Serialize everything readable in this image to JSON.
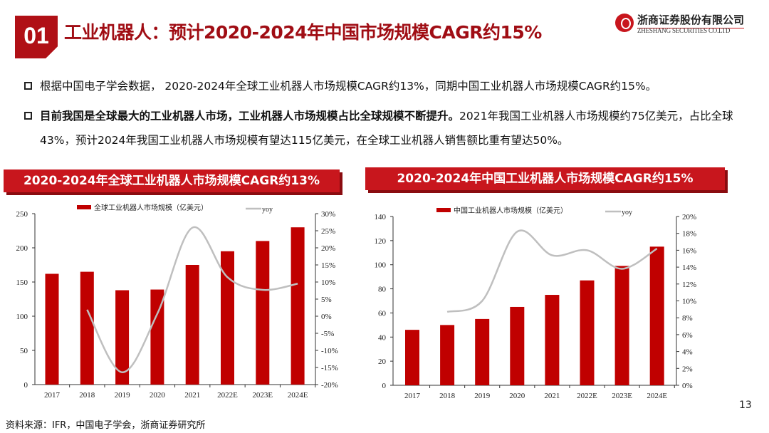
{
  "header": {
    "section_number": "01",
    "title": "工业机器人：预计2020-2024年中国市场规模CAGR约15%",
    "logo_cn": "浙商证券股份有限公司",
    "logo_en": "ZHESHANG SECURITIES CO.LTD"
  },
  "bullets": [
    {
      "bold": "",
      "text": "根据中国电子学会数据， 2020-2024年全球工业机器人市场规模CAGR约13%，同期中国工业机器人市场规模CAGR约15%。"
    },
    {
      "bold": "目前我国是全球最大的工业机器人市场，工业机器人市场规模占比全球规模不断提升。",
      "text": "2021年我国工业机器人市场规模约75亿美元，占比全球43%，预计2024年我国工业机器人市场规模有望达115亿美元，在全球工业机器人销售额比重有望达50%。"
    }
  ],
  "footer": {
    "source": "资料来源：IFR，中国电子学会，浙商证券研究所",
    "page": "13"
  },
  "colors": {
    "brand_red": "#c8161d",
    "title_red": "#a00d14",
    "bar": "#c00000",
    "line": "#bfbfbf"
  },
  "chart_data": [
    {
      "type": "bar+line",
      "title": "2020-2024年全球工业机器人市场规模CAGR约13%",
      "categories": [
        "2017",
        "2018",
        "2019",
        "2020",
        "2021",
        "2022E",
        "2023E",
        "2024E"
      ],
      "series": [
        {
          "name": "全球工业机器人市场规模（亿美元）",
          "type": "bar",
          "axis": "left",
          "values": [
            162,
            165,
            138,
            139,
            175,
            195,
            210,
            230
          ]
        },
        {
          "name": "yoy",
          "type": "line",
          "axis": "right",
          "values": [
            null,
            1.9,
            -16.4,
            0.7,
            25.9,
            11.4,
            7.7,
            9.5
          ]
        }
      ],
      "ylim": [
        0,
        250
      ],
      "yticks": [
        "0",
        "50",
        "100",
        "150",
        "200",
        "250"
      ],
      "y2lim": [
        -20,
        30
      ],
      "y2ticks": [
        "-20%",
        "-15%",
        "-10%",
        "-5%",
        "0%",
        "5%",
        "10%",
        "15%",
        "20%",
        "25%",
        "30%"
      ],
      "legend": "top",
      "grid": false
    },
    {
      "type": "bar+line",
      "title": "2020-2024年中国工业机器人市场规模CAGR约15%",
      "categories": [
        "2017",
        "2018",
        "2019",
        "2020",
        "2021",
        "2022E",
        "2023E",
        "2024E"
      ],
      "series": [
        {
          "name": "中国工业机器人市场规模（亿美元）",
          "type": "bar",
          "axis": "left",
          "values": [
            46,
            50,
            55,
            65,
            75,
            87,
            99,
            115
          ]
        },
        {
          "name": "yoy",
          "type": "line",
          "axis": "right",
          "values": [
            null,
            8.7,
            10.0,
            18.2,
            15.4,
            16.0,
            13.8,
            16.2
          ]
        }
      ],
      "ylim": [
        0,
        140
      ],
      "yticks": [
        "0",
        "20",
        "40",
        "60",
        "80",
        "100",
        "120",
        "140"
      ],
      "y2lim": [
        0,
        20
      ],
      "y2ticks": [
        "0%",
        "2%",
        "4%",
        "6%",
        "8%",
        "10%",
        "12%",
        "14%",
        "16%",
        "18%",
        "20%"
      ],
      "legend": "top",
      "grid": false
    }
  ]
}
